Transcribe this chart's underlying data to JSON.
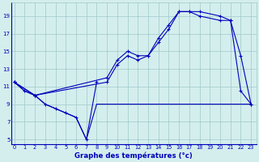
{
  "title": "Graphe des températures (°c)",
  "background_color": "#d4eeee",
  "grid_color": "#a0c8c8",
  "line_color": "#0000bb",
  "ylabel_values": [
    5,
    7,
    9,
    11,
    13,
    15,
    17,
    19
  ],
  "xlabel_values": [
    0,
    1,
    2,
    3,
    4,
    5,
    6,
    7,
    8,
    9,
    10,
    11,
    12,
    13,
    14,
    15,
    16,
    17,
    18,
    19,
    20,
    21,
    22,
    23
  ],
  "xlim": [
    -0.3,
    23.5
  ],
  "ylim": [
    4.5,
    20.5
  ],
  "series_min_x": [
    0,
    1,
    2,
    3,
    4,
    5,
    6,
    7,
    8,
    9,
    10,
    11,
    12,
    13,
    14,
    15,
    16,
    17,
    18,
    19,
    20,
    21,
    22,
    23
  ],
  "series_min_y": [
    11.5,
    10.5,
    10.0,
    9.0,
    8.5,
    8.0,
    7.5,
    5.0,
    9.0,
    9.0,
    9.0,
    9.0,
    9.0,
    9.0,
    9.0,
    9.0,
    9.0,
    9.0,
    9.0,
    9.0,
    9.0,
    9.0,
    9.0,
    9.0
  ],
  "series_dip_x": [
    0,
    2,
    3,
    4,
    5,
    6,
    7,
    8
  ],
  "series_dip_y": [
    11.5,
    10.0,
    9.0,
    8.5,
    8.0,
    7.5,
    5.0,
    11.5
  ],
  "series_upper1_x": [
    0,
    1,
    2,
    9,
    10,
    11,
    12,
    13,
    14,
    15,
    16,
    17,
    18,
    20,
    21,
    22,
    23
  ],
  "series_upper1_y": [
    11.5,
    10.5,
    10.0,
    11.5,
    13.5,
    14.5,
    14.0,
    14.5,
    16.0,
    17.5,
    19.5,
    19.5,
    19.5,
    19.0,
    18.5,
    10.5,
    9.0
  ],
  "series_upper2_x": [
    0,
    2,
    9,
    10,
    11,
    12,
    13,
    14,
    15,
    16,
    17,
    18,
    20,
    21,
    22,
    23
  ],
  "series_upper2_y": [
    11.5,
    10.0,
    12.0,
    14.0,
    15.0,
    14.5,
    14.5,
    16.5,
    18.0,
    19.5,
    19.5,
    19.0,
    18.5,
    18.5,
    14.5,
    9.0
  ]
}
